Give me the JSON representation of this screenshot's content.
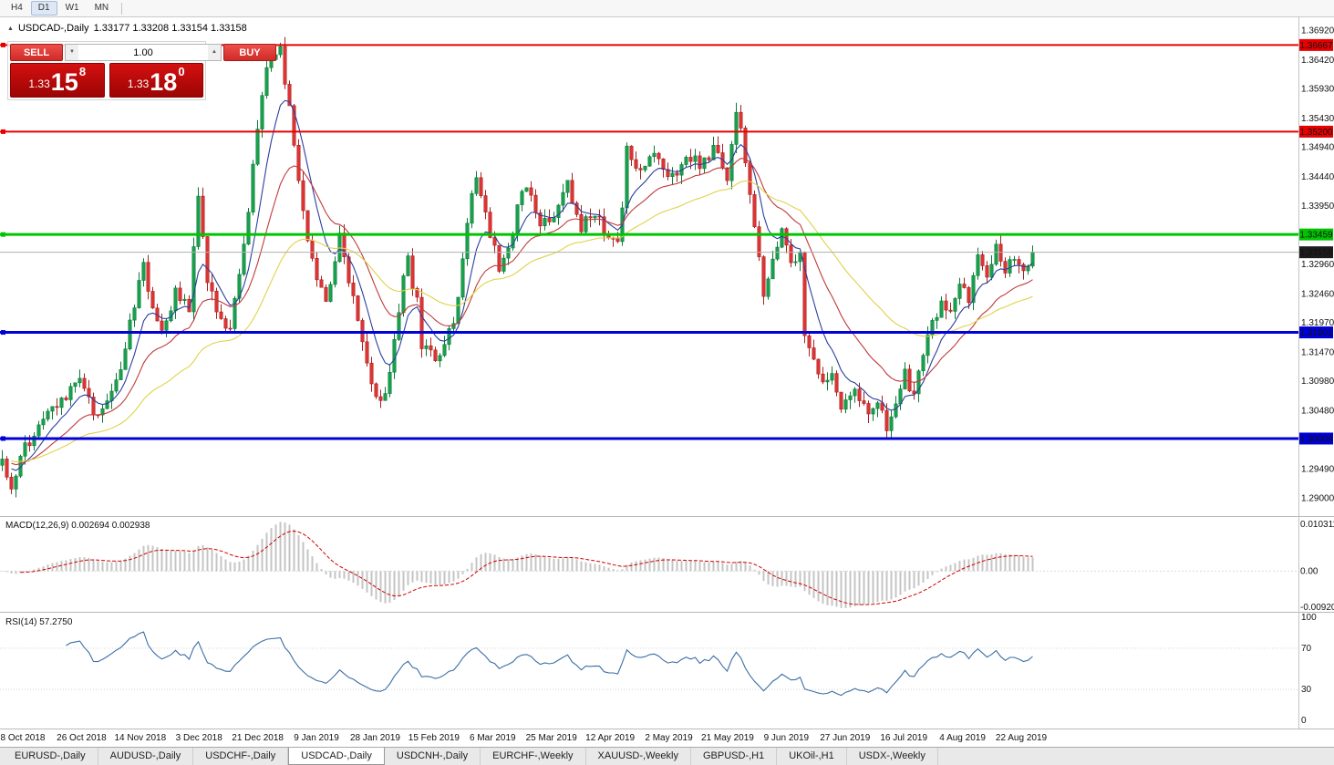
{
  "toolbar": {
    "timeframes": [
      "H4",
      "D1",
      "W1",
      "MN"
    ],
    "active": "D1"
  },
  "chart": {
    "marker": "▲",
    "symbol": "USDCAD-,Daily",
    "ohlc": "1.33177 1.33208 1.33154 1.33158"
  },
  "trade_panel": {
    "sell_label": "SELL",
    "buy_label": "BUY",
    "volume": "1.00",
    "spin_up": "▲",
    "spin_down": "▼",
    "sell_price": {
      "prefix": "1.33",
      "big": "15",
      "sup": "8"
    },
    "buy_price": {
      "prefix": "1.33",
      "big": "18",
      "sup": "0"
    }
  },
  "chart_data": {
    "type": "candlestick",
    "symbol": "USDCAD",
    "timeframe": "Daily",
    "current_ohlc": {
      "open": 1.33177,
      "high": 1.33208,
      "low": 1.33154,
      "close": 1.33158
    },
    "bars_total": 227,
    "price_axis": {
      "top": 1.37136,
      "bottom": 1.28691,
      "ticks": [
        "1.36920",
        "1.36420",
        "1.35930",
        "1.35430",
        "1.34940",
        "1.34440",
        "1.33950",
        "1.32960",
        "1.32460",
        "1.31970",
        "1.31470",
        "1.30980",
        "1.30480",
        "1.29490",
        "1.29000"
      ]
    },
    "h_lines": [
      {
        "price": 1.36667,
        "label": "1.36667",
        "color": "#e80000",
        "width": 2
      },
      {
        "price": 1.352,
        "label": "1.35200",
        "color": "#e80000",
        "width": 2
      },
      {
        "price": 1.33459,
        "label": "1.33459",
        "color": "#00c400",
        "width": 3
      },
      {
        "price": 1.31801,
        "label": "1.31801",
        "color": "#0000d8",
        "width": 3
      },
      {
        "price": 1.30004,
        "label": "1.30004",
        "color": "#0000d8",
        "width": 3
      }
    ],
    "current_price": {
      "value": 1.33158,
      "label": "1.33158",
      "line_color": "#b0b0b0",
      "tag_bg": "#1c1c1c"
    },
    "x_labels": [
      "8 Oct 2018",
      "26 Oct 2018",
      "14 Nov 2018",
      "3 Dec 2018",
      "21 Dec 2018",
      "9 Jan 2019",
      "28 Jan 2019",
      "15 Feb 2019",
      "6 Mar 2019",
      "25 Mar 2019",
      "12 Apr 2019",
      "2 May 2019",
      "21 May 2019",
      "9 Jun 2019",
      "27 Jun 2019",
      "16 Jul 2019",
      "4 Aug 2019",
      "22 Aug 2019"
    ],
    "price_path_anchors": [
      [
        0,
        1.296
      ],
      [
        2,
        1.2918
      ],
      [
        5,
        1.2985
      ],
      [
        8,
        1.3015
      ],
      [
        11,
        1.3048
      ],
      [
        14,
        1.3065
      ],
      [
        17,
        1.3105
      ],
      [
        20,
        1.3038
      ],
      [
        23,
        1.3065
      ],
      [
        26,
        1.311
      ],
      [
        29,
        1.323
      ],
      [
        31,
        1.329
      ],
      [
        33,
        1.3215
      ],
      [
        35,
        1.3185
      ],
      [
        38,
        1.3245
      ],
      [
        41,
        1.322
      ],
      [
        43,
        1.342
      ],
      [
        45,
        1.327
      ],
      [
        47,
        1.3215
      ],
      [
        50,
        1.3185
      ],
      [
        52,
        1.328
      ],
      [
        54,
        1.339
      ],
      [
        56,
        1.353
      ],
      [
        58,
        1.362
      ],
      [
        60,
        1.3655
      ],
      [
        61,
        1.366
      ],
      [
        63,
        1.356
      ],
      [
        65,
        1.343
      ],
      [
        67,
        1.334
      ],
      [
        69,
        1.328
      ],
      [
        71,
        1.324
      ],
      [
        73,
        1.33
      ],
      [
        74,
        1.335
      ],
      [
        76,
        1.327
      ],
      [
        78,
        1.32
      ],
      [
        80,
        1.312
      ],
      [
        82,
        1.3078
      ],
      [
        84,
        1.3072
      ],
      [
        86,
        1.316
      ],
      [
        88,
        1.327
      ],
      [
        89,
        1.33
      ],
      [
        91,
        1.323
      ],
      [
        92,
        1.316
      ],
      [
        94,
        1.314
      ],
      [
        95,
        1.313
      ],
      [
        97,
        1.316
      ],
      [
        99,
        1.32
      ],
      [
        101,
        1.33
      ],
      [
        103,
        1.342
      ],
      [
        104,
        1.345
      ],
      [
        106,
        1.338
      ],
      [
        108,
        1.332
      ],
      [
        109,
        1.329
      ],
      [
        111,
        1.332
      ],
      [
        113,
        1.339
      ],
      [
        115,
        1.343
      ],
      [
        117,
        1.339
      ],
      [
        118,
        1.337
      ],
      [
        120,
        1.3375
      ],
      [
        121,
        1.338
      ],
      [
        123,
        1.341
      ],
      [
        124,
        1.343
      ],
      [
        126,
        1.339
      ],
      [
        127,
        1.336
      ],
      [
        129,
        1.3375
      ],
      [
        130,
        1.338
      ],
      [
        132,
        1.3355
      ],
      [
        133,
        1.334
      ],
      [
        135,
        1.333
      ],
      [
        136,
        1.34
      ],
      [
        137,
        1.349
      ],
      [
        139,
        1.346
      ],
      [
        140,
        1.345
      ],
      [
        142,
        1.347
      ],
      [
        143,
        1.348
      ],
      [
        145,
        1.346
      ],
      [
        147,
        1.344
      ],
      [
        149,
        1.3465
      ],
      [
        150,
        1.348
      ],
      [
        152,
        1.347
      ],
      [
        153,
        1.346
      ],
      [
        155,
        1.348
      ],
      [
        156,
        1.349
      ],
      [
        158,
        1.346
      ],
      [
        159,
        1.344
      ],
      [
        161,
        1.356
      ],
      [
        163,
        1.3475
      ],
      [
        165,
        1.335
      ],
      [
        167,
        1.325
      ],
      [
        169,
        1.331
      ],
      [
        171,
        1.335
      ],
      [
        173,
        1.329
      ],
      [
        175,
        1.332
      ],
      [
        176,
        1.318
      ],
      [
        178,
        1.314
      ],
      [
        180,
        1.309
      ],
      [
        182,
        1.311
      ],
      [
        184,
        1.306
      ],
      [
        186,
        1.3075
      ],
      [
        187,
        1.308
      ],
      [
        189,
        1.3055
      ],
      [
        190,
        1.304
      ],
      [
        192,
        1.306
      ],
      [
        194,
        1.302
      ],
      [
        196,
        1.305
      ],
      [
        198,
        1.311
      ],
      [
        200,
        1.307
      ],
      [
        202,
        1.315
      ],
      [
        204,
        1.32
      ],
      [
        206,
        1.323
      ],
      [
        208,
        1.321
      ],
      [
        210,
        1.327
      ],
      [
        212,
        1.323
      ],
      [
        214,
        1.331
      ],
      [
        216,
        1.328
      ],
      [
        218,
        1.333
      ],
      [
        220,
        1.329
      ],
      [
        222,
        1.331
      ],
      [
        224,
        1.328
      ],
      [
        226,
        1.33158
      ]
    ],
    "candle_colors": {
      "up": "#18a24d",
      "up_border": "#0b7a37",
      "down": "#e03434",
      "down_border": "#a81f1f"
    },
    "moving_averages": [
      {
        "name": "fast-ma",
        "period": 8,
        "color": "#2b3f9e"
      },
      {
        "name": "medium-ma",
        "period": 20,
        "color": "#c03a3a"
      },
      {
        "name": "slow-ma",
        "period": 45,
        "color": "#e0d24a"
      }
    ],
    "macd": {
      "label": "MACD(12,26,9)",
      "values_text": "0.002694 0.002938",
      "fast": 12,
      "slow": 26,
      "signal": 9,
      "scale": {
        "top": "0.010311",
        "zero": "0.00",
        "bottom": "-0.0092033"
      },
      "histogram_color": "#c4c4c4",
      "signal_color": "#d00000"
    },
    "rsi": {
      "label": "RSI(14)",
      "value_text": "57.2750",
      "period": 14,
      "scale": [
        "100",
        "70",
        "30",
        "0"
      ],
      "levels": [
        70,
        30
      ],
      "line_color": "#3a6ea5"
    }
  },
  "tabs": {
    "items": [
      "EURUSD-,Daily",
      "AUDUSD-,Daily",
      "USDCHF-,Daily",
      "USDCAD-,Daily",
      "USDCNH-,Daily",
      "EURCHF-,Weekly",
      "XAUUSD-,Weekly",
      "GBPUSD-,H1",
      "UKOil-,H1",
      "USDX-,Weekly"
    ],
    "active": "USDCAD-,Daily"
  }
}
